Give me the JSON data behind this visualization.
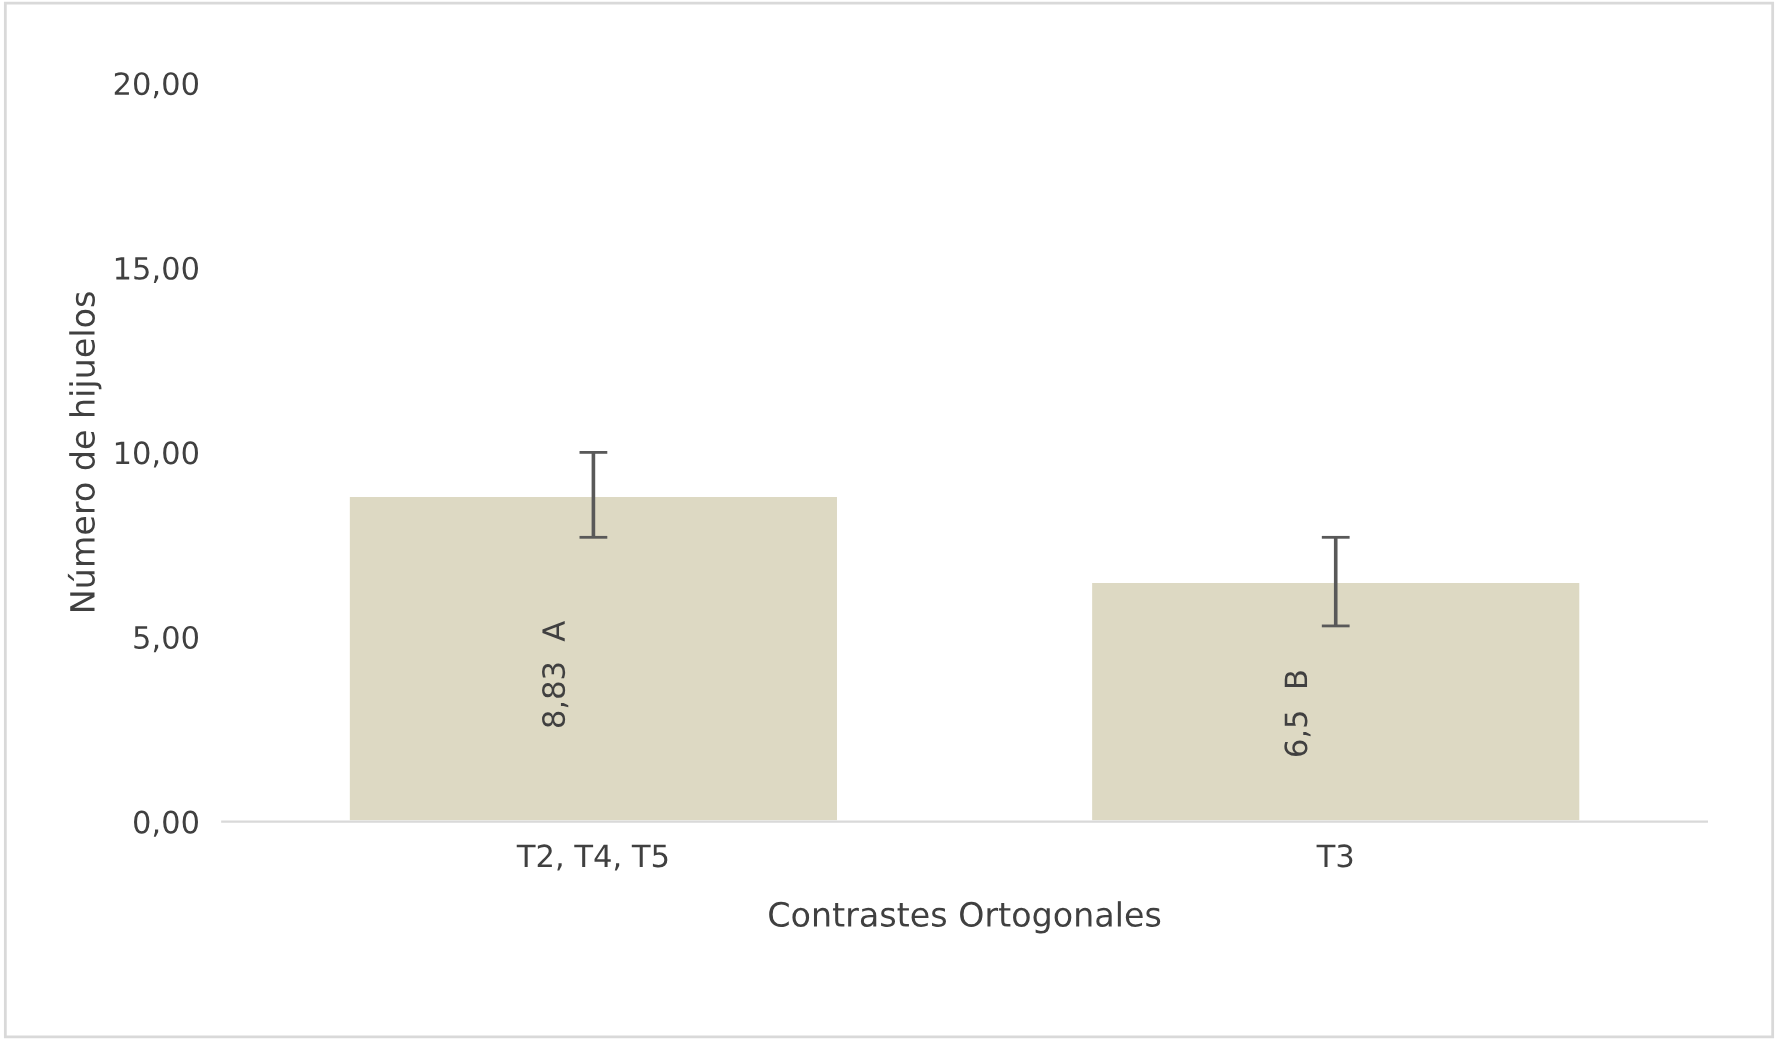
{
  "chart_data": {
    "type": "bar",
    "xlabel": "Contrastes Ortogonales",
    "ylabel": "Número de hijuelos",
    "categories": [
      "T2, T4, T5",
      "T3"
    ],
    "values": [
      8.83,
      6.5
    ],
    "errors": [
      [
        7.7,
        10.0
      ],
      [
        5.3,
        7.7
      ]
    ],
    "value_labels": [
      "8,83  A",
      "6,5  B"
    ],
    "color": "#ddd9c3",
    "ylim": [
      0,
      20
    ],
    "yticks": [
      {
        "value": 0,
        "label": "0,00"
      },
      {
        "value": 5,
        "label": "5,00"
      },
      {
        "value": 10,
        "label": "10,00"
      },
      {
        "value": 15,
        "label": "15,00"
      },
      {
        "value": 20,
        "label": "20,00"
      }
    ],
    "grid": false,
    "legend": false
  }
}
